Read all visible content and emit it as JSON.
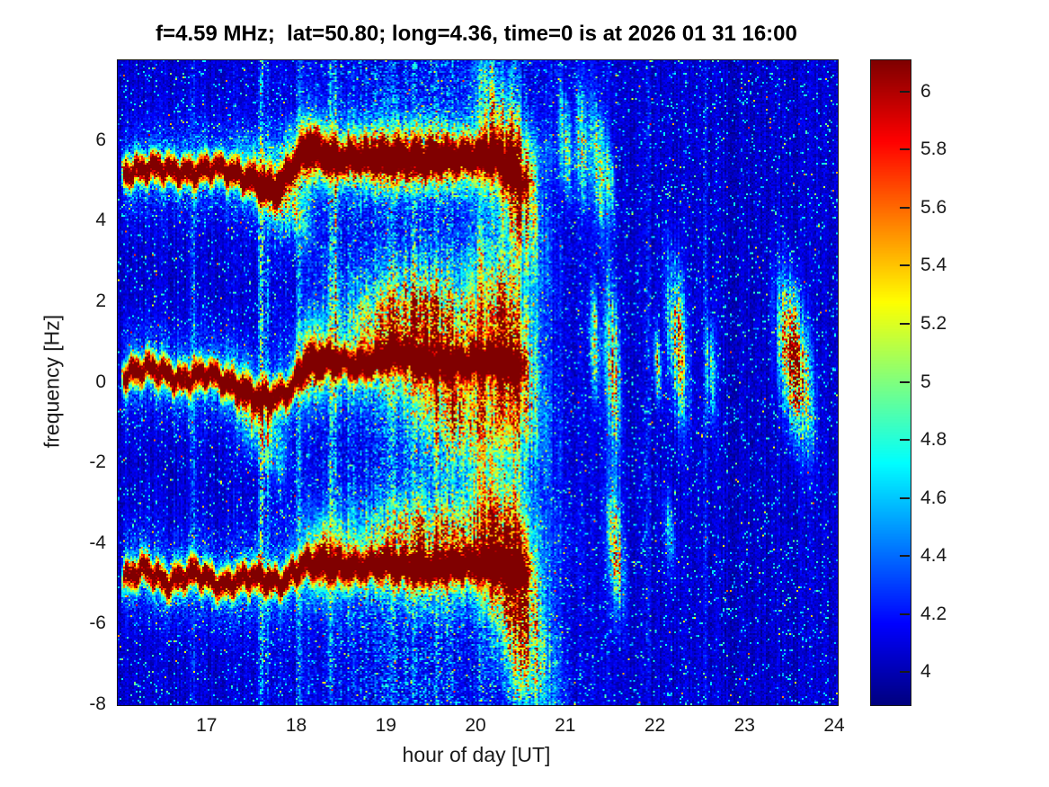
{
  "figure": {
    "background_color": "#ffffff",
    "text_color": "#1a1a1a"
  },
  "chart_data": {
    "type": "heatmap",
    "subtype": "doppler-spectrogram",
    "title": "f=4.59 MHz;  lat=50.80; long=4.36, time=0 is at 2026 01 31 16:00",
    "xlabel": "hour of day [UT]",
    "ylabel": "frequency [Hz]",
    "x_range": [
      16.0,
      24.03
    ],
    "y_range": [
      -8,
      8
    ],
    "x_ticks": [
      17,
      18,
      19,
      20,
      21,
      22,
      23,
      24
    ],
    "y_ticks": [
      6,
      4,
      2,
      0,
      -2,
      -4,
      -6,
      -8
    ],
    "grid": false,
    "colormap": "jet",
    "color_range": [
      3.89,
      6.11
    ],
    "colorbar_ticks": [
      6,
      5.8,
      5.6,
      5.4,
      5.2,
      5,
      4.8,
      4.6,
      4.4,
      4.2,
      4
    ],
    "colorbar_position": "right",
    "noise_floor": 3.9,
    "diffuse_activity": {
      "center_hour": 19.4,
      "sigma_hours": 1.1,
      "amp": 0.5
    },
    "spectral_lines": [
      {
        "name": "upper-doppler-line",
        "approx_freq_hz": 5.3,
        "start_hour": 16.03,
        "end_hour": 20.55,
        "core_halfwidth_hz": 0.09,
        "fringe_sigma_hz": 0.24,
        "keyframes": [
          [
            16.05,
            5.2
          ],
          [
            16.4,
            5.35
          ],
          [
            16.8,
            5.2
          ],
          [
            17.1,
            5.35
          ],
          [
            17.45,
            5.05
          ],
          [
            17.75,
            4.75
          ],
          [
            18.0,
            5.5
          ],
          [
            18.15,
            5.85
          ],
          [
            18.4,
            5.55
          ],
          [
            18.8,
            5.6
          ],
          [
            19.3,
            5.55
          ],
          [
            19.8,
            5.6
          ],
          [
            20.2,
            5.65
          ],
          [
            20.55,
            4.9
          ]
        ]
      },
      {
        "name": "center-doppler-line",
        "approx_freq_hz": 0.1,
        "start_hour": 16.03,
        "end_hour": 20.5,
        "core_halfwidth_hz": 0.09,
        "fringe_sigma_hz": 0.24,
        "keyframes": [
          [
            16.05,
            0.15
          ],
          [
            16.35,
            0.4
          ],
          [
            16.7,
            0.05
          ],
          [
            17.0,
            0.25
          ],
          [
            17.3,
            -0.1
          ],
          [
            17.6,
            -0.4
          ],
          [
            17.9,
            -0.25
          ],
          [
            18.1,
            0.45
          ],
          [
            18.35,
            0.55
          ],
          [
            18.7,
            0.4
          ],
          [
            19.1,
            0.75
          ],
          [
            19.4,
            0.5
          ],
          [
            19.7,
            0.45
          ],
          [
            20.1,
            0.55
          ],
          [
            20.45,
            0.4
          ]
        ]
      },
      {
        "name": "lower-doppler-line",
        "approx_freq_hz": -4.8,
        "start_hour": 16.03,
        "end_hour": 20.55,
        "core_halfwidth_hz": 0.09,
        "fringe_sigma_hz": 0.24,
        "keyframes": [
          [
            16.05,
            -4.9
          ],
          [
            16.3,
            -4.6
          ],
          [
            16.55,
            -5.0
          ],
          [
            16.85,
            -4.7
          ],
          [
            17.15,
            -5.05
          ],
          [
            17.5,
            -4.8
          ],
          [
            17.8,
            -5.0
          ],
          [
            18.1,
            -4.5
          ],
          [
            18.35,
            -4.55
          ],
          [
            18.7,
            -4.6
          ],
          [
            19.0,
            -4.5
          ],
          [
            19.4,
            -4.65
          ],
          [
            19.8,
            -4.55
          ],
          [
            20.15,
            -4.5
          ],
          [
            20.5,
            -4.7
          ]
        ]
      }
    ],
    "events": [
      {
        "hour": 19.3,
        "freq": 5.6,
        "sh": 0.75,
        "sf": 0.5,
        "tilt": 0,
        "amp": 1.9
      },
      {
        "hour": 18.15,
        "freq": 5.75,
        "sh": 0.12,
        "sf": 0.5,
        "tilt": 0,
        "amp": 1.5
      },
      {
        "hour": 17.78,
        "freq": 4.7,
        "sh": 0.22,
        "sf": 0.5,
        "tilt": -2,
        "amp": 1.4
      },
      {
        "hour": 20.38,
        "freq": 5.3,
        "sh": 0.2,
        "sf": 1.1,
        "tilt": -5,
        "amp": 2.3
      },
      {
        "hour": 19.35,
        "freq": 1.3,
        "sh": 0.5,
        "sf": 0.95,
        "tilt": 0,
        "amp": 2.3
      },
      {
        "hour": 19.85,
        "freq": -0.9,
        "sh": 0.35,
        "sf": 0.8,
        "tilt": 0,
        "amp": 1.6
      },
      {
        "hour": 18.2,
        "freq": 0.5,
        "sh": 0.12,
        "sf": 0.6,
        "tilt": 0,
        "amp": 1.5
      },
      {
        "hour": 17.55,
        "freq": -0.9,
        "sh": 0.18,
        "sf": 0.6,
        "tilt": -3,
        "amp": 1.2
      },
      {
        "hour": 20.35,
        "freq": 0.9,
        "sh": 0.22,
        "sf": 1.4,
        "tilt": -4,
        "amp": 2.2
      },
      {
        "hour": 19.55,
        "freq": -4.0,
        "sh": 0.6,
        "sf": 0.8,
        "tilt": 0,
        "amp": 1.8
      },
      {
        "hour": 18.35,
        "freq": -4.3,
        "sh": 0.15,
        "sf": 0.6,
        "tilt": 0,
        "amp": 1.2
      },
      {
        "hour": 20.4,
        "freq": -5.0,
        "sh": 0.25,
        "sf": 1.4,
        "tilt": -5,
        "amp": 2.4
      },
      {
        "hour": 21.0,
        "freq": 5.9,
        "sh": 0.05,
        "sf": 0.7,
        "tilt": -8,
        "amp": 1.0
      },
      {
        "hour": 21.18,
        "freq": 5.9,
        "sh": 0.05,
        "sf": 0.9,
        "tilt": -8,
        "amp": 1.1
      },
      {
        "hour": 21.35,
        "freq": 5.5,
        "sh": 0.06,
        "sf": 0.9,
        "tilt": -8,
        "amp": 1.3
      },
      {
        "hour": 21.48,
        "freq": 5.1,
        "sh": 0.04,
        "sf": 0.6,
        "tilt": -8,
        "amp": 1.0
      },
      {
        "hour": 21.32,
        "freq": 1.0,
        "sh": 0.04,
        "sf": 0.8,
        "tilt": -7,
        "amp": 1.2
      },
      {
        "hour": 21.52,
        "freq": 0.3,
        "sh": 0.05,
        "sf": 1.2,
        "tilt": -8,
        "amp": 2.0
      },
      {
        "hour": 22.02,
        "freq": 0.45,
        "sh": 0.03,
        "sf": 0.5,
        "tilt": -6,
        "amp": 1.3
      },
      {
        "hour": 22.25,
        "freq": 1.0,
        "sh": 0.07,
        "sf": 1.1,
        "tilt": -7,
        "amp": 2.1
      },
      {
        "hour": 22.62,
        "freq": 0.3,
        "sh": 0.04,
        "sf": 0.8,
        "tilt": -6,
        "amp": 1.1
      },
      {
        "hour": 23.55,
        "freq": 0.5,
        "sh": 0.11,
        "sf": 1.0,
        "tilt": -5,
        "amp": 2.7
      },
      {
        "hour": 21.55,
        "freq": -4.1,
        "sh": 0.06,
        "sf": 0.9,
        "tilt": -7,
        "amp": 2.0
      },
      {
        "hour": 22.15,
        "freq": -3.7,
        "sh": 0.04,
        "sf": 0.6,
        "tilt": -6,
        "amp": 0.9
      }
    ],
    "interference_streaks": [
      {
        "hour": 16.84,
        "amp": 0.45
      },
      {
        "hour": 17.6,
        "amp": 1.1
      },
      {
        "hour": 17.67,
        "amp": 0.5
      },
      {
        "hour": 18.02,
        "amp": 0.6
      },
      {
        "hour": 18.38,
        "amp": 0.8
      },
      {
        "hour": 18.43,
        "amp": 1.6,
        "w": 0.012,
        "band": [
          0.3,
          0.22
        ]
      },
      {
        "hour": 19.05,
        "amp": 0.55
      },
      {
        "hour": 19.3,
        "amp": 0.35
      },
      {
        "hour": 19.55,
        "amp": 0.4
      },
      {
        "hour": 20.05,
        "amp": 0.4
      },
      {
        "hour": 20.42,
        "amp": 0.8
      },
      {
        "hour": 20.47,
        "amp": 0.5
      },
      {
        "hour": 21.9,
        "amp": 0.3
      },
      {
        "hour": 22.55,
        "amp": 0.3
      }
    ]
  }
}
